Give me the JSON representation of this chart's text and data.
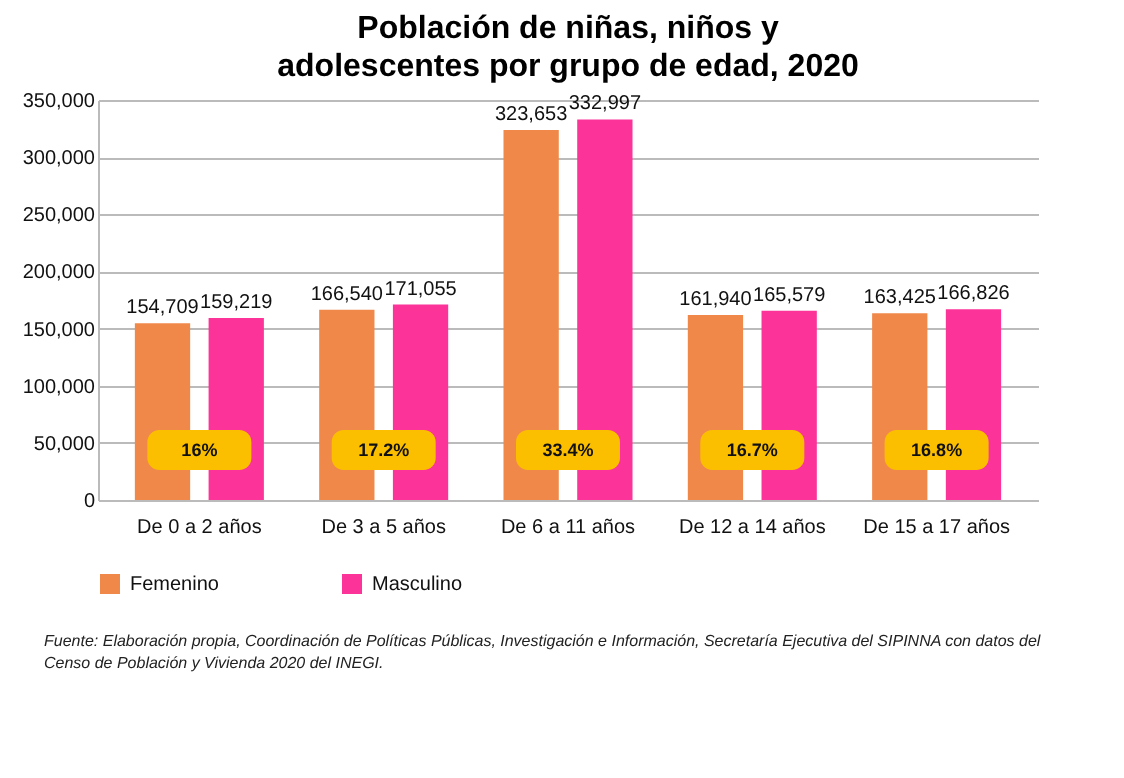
{
  "chart_data": {
    "type": "bar",
    "title": "Población de niñas, niños y adolescentes por grupo de edad, 2020",
    "categories": [
      "De 0 a 2 años",
      "De 3 a 5 años",
      "De 6 a 11 años",
      "De 12 a 14 años",
      "De 15 a 17 años"
    ],
    "series": [
      {
        "name": "Femenino",
        "color": "#f0884a",
        "values": [
          154709,
          166540,
          323653,
          161940,
          163425
        ]
      },
      {
        "name": "Masculino",
        "color": "#fc3399",
        "values": [
          159219,
          171055,
          332997,
          165579,
          166826
        ]
      }
    ],
    "ylim": [
      0,
      350000
    ],
    "yticks": [
      {
        "value": 0,
        "label": "0"
      },
      {
        "value": 50000,
        "label": "50,000"
      },
      {
        "value": 100000,
        "label": "100,000"
      },
      {
        "value": 150000,
        "label": "150,000"
      },
      {
        "value": 200000,
        "label": "200,000"
      },
      {
        "value": 250000,
        "label": "250,000"
      },
      {
        "value": 300000,
        "label": "300,000"
      },
      {
        "value": 350000,
        "label": "350,000"
      }
    ],
    "grid": "y",
    "legend": "bottom",
    "value_labels": [
      [
        "154,709",
        "166,540",
        "323,653",
        "161,940",
        "163,425"
      ],
      [
        "159,219",
        "171,055",
        "332,997",
        "165,579",
        "166,826"
      ]
    ],
    "annotations": [
      {
        "text": "16%",
        "x": "De 0 a 2 años"
      },
      {
        "text": "17.2%",
        "x": "De 3 a 5 años"
      },
      {
        "text": "33.4%",
        "x": "De 6 a 11 años"
      },
      {
        "text": "16.7%",
        "x": "De 12 a 14 años"
      },
      {
        "text": "16.8%",
        "x": "De 15 a 17 años"
      },
      "Fuente: Elaboración propia, Coordinación de Políticas Públicas, Investigación e Información, Secretaría Ejecutiva del SIPINNA con datos del Censo de Población y Vivienda 2020 del INEGI."
    ]
  }
}
